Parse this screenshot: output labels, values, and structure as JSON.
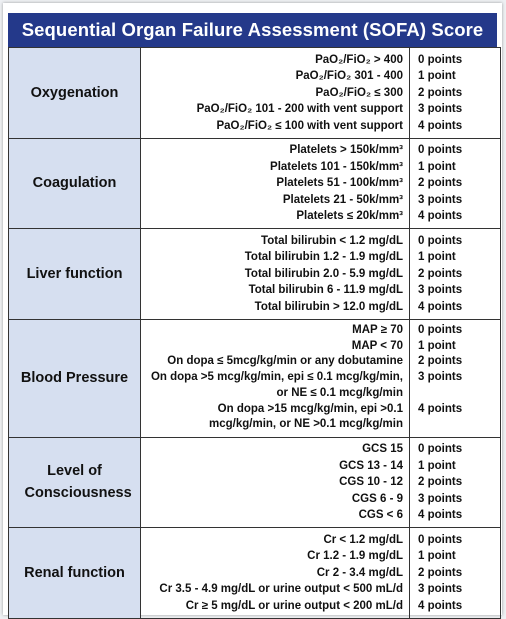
{
  "title": "Sequential Organ Failure Assessment  (SOFA) Score",
  "sections": [
    {
      "name": "Oxygenation",
      "criteria": [
        "PaO₂/FiO₂ > 400",
        "PaO₂/FiO₂ 301 - 400",
        "PaO₂/FiO₂ ≤ 300",
        "PaO₂/FiO₂ 101 - 200 with vent support",
        "PaO₂/FiO₂ ≤ 100 with vent support"
      ],
      "points": [
        "0 points",
        "1 point",
        "2 points",
        "3 points",
        "4 points"
      ]
    },
    {
      "name": "Coagulation",
      "criteria": [
        "Platelets > 150k/mm³",
        "Platelets 101 - 150k/mm³",
        "Platelets 51 - 100k/mm³",
        "Platelets 21 - 50k/mm³",
        "Platelets ≤ 20k/mm³"
      ],
      "points": [
        "0 points",
        "1 point",
        "2 points",
        "3 points",
        "4 points"
      ]
    },
    {
      "name": "Liver function",
      "criteria": [
        "Total bilirubin < 1.2 mg/dL",
        "Total bilirubin 1.2 - 1.9 mg/dL",
        "Total bilirubin 2.0 - 5.9 mg/dL",
        "Total bilirubin 6 - 11.9 mg/dL",
        "Total bilirubin > 12.0 mg/dL"
      ],
      "points": [
        "0 points",
        "1 point",
        "2 points",
        "3 points",
        "4 points"
      ]
    },
    {
      "name": "Blood Pressure",
      "criteria": [
        "MAP ≥ 70",
        "MAP < 70",
        "On dopa ≤ 5mcg/kg/min or any dobutamine",
        "On dopa >5 mcg/kg/min, epi ≤ 0.1 mcg/kg/min,",
        "or NE ≤ 0.1 mcg/kg/min",
        "On dopa >15 mcg/kg/min, epi >0.1",
        "mcg/kg/min, or NE >0.1 mcg/kg/min"
      ],
      "points": [
        "0 points",
        "1 point",
        "2 points",
        "3 points",
        "",
        "4 points",
        ""
      ]
    },
    {
      "name": "Level of Consciousness",
      "criteria": [
        "GCS 15",
        "GCS 13 - 14",
        "CGS 10 - 12",
        "CGS 6 - 9",
        "CGS < 6"
      ],
      "points": [
        "0 points",
        "1 point",
        "2 points",
        "3 points",
        "4 points"
      ]
    },
    {
      "name": "Renal function",
      "criteria": [
        "Cr < 1.2 mg/dL",
        "Cr 1.2 - 1.9 mg/dL",
        "Cr 2 - 3.4 mg/dL",
        "Cr 3.5 - 4.9 mg/dL or urine output < 500 mL/d",
        "Cr ≥ 5 mg/dL or urine output < 200 mL/d"
      ],
      "points": [
        "0 points",
        "1 point",
        "2 points",
        "3 points",
        "4 points"
      ]
    }
  ]
}
